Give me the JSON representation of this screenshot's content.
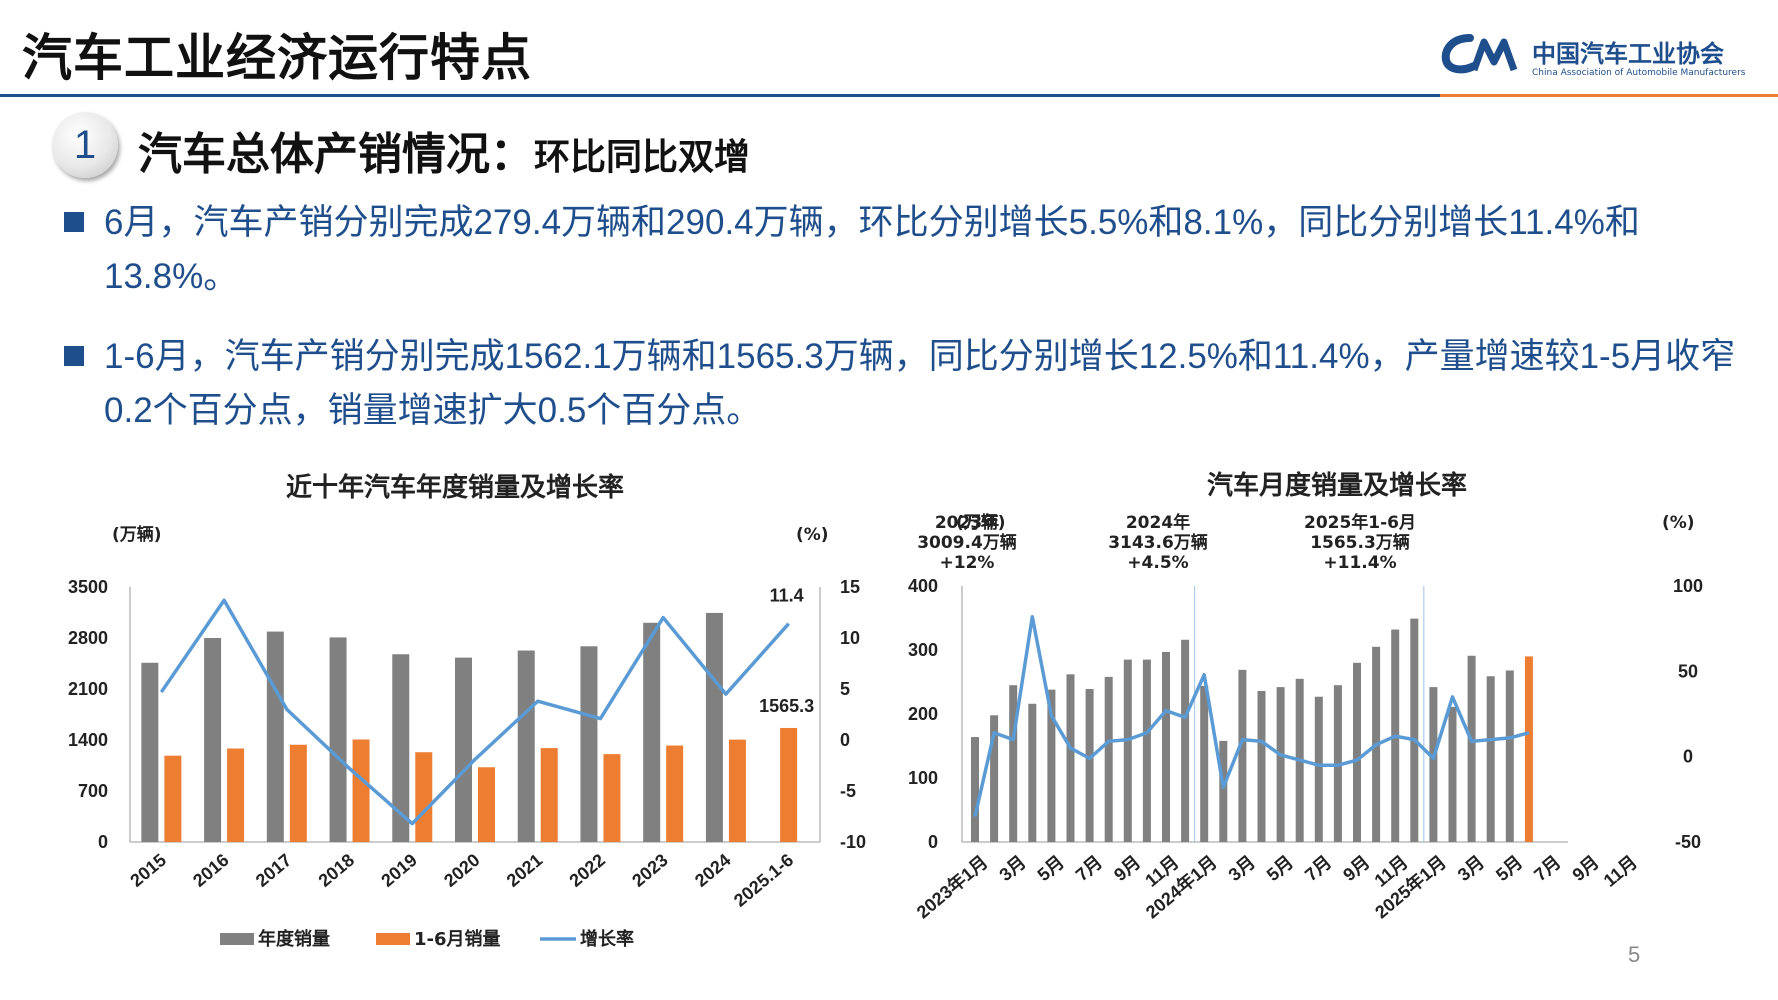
{
  "header": {
    "title": "汽车工业经济运行特点",
    "logo_cn": "中国汽车工业协会",
    "logo_en": "China Association of Automobile Manufacturers",
    "logo_mark": "CAM"
  },
  "section": {
    "number": "1",
    "title": "汽车总体产销情况：",
    "subtitle": "环比同比双增"
  },
  "bullets": [
    "6月，汽车产销分别完成279.4万辆和290.4万辆，环比分别增长5.5%和8.1%，同比分别增长11.4%和13.8%。",
    "1-6月，汽车产销分别完成1562.1万辆和1565.3万辆，同比分别增长12.5%和11.4%，产量增速较1-5月收窄0.2个百分点，销量增速扩大0.5个百分点。"
  ],
  "page_number": "5",
  "colors": {
    "grey_bar": "#808080",
    "orange_bar": "#ed7d31",
    "line": "#5b9bd5",
    "accent": "#1f4e8c"
  },
  "chart_data": [
    {
      "type": "bar",
      "title": "近十年汽车年度销量及增长率",
      "ylabel_left": "(万辆)",
      "ylabel_right": "(%)",
      "ylim_left": [
        0,
        3500
      ],
      "ylim_right": [
        -10,
        15
      ],
      "yticks_left": [
        "0",
        "700",
        "1400",
        "2100",
        "2800",
        "3500"
      ],
      "yticks_right": [
        "-10",
        "-5",
        "0",
        "5",
        "10",
        "15"
      ],
      "categories": [
        "2015",
        "2016",
        "2017",
        "2018",
        "2019",
        "2020",
        "2021",
        "2022",
        "2023",
        "2024",
        "2025.1-6"
      ],
      "series": [
        {
          "name": "年度销量",
          "type": "bar",
          "values": [
            2460,
            2800,
            2888,
            2808,
            2577,
            2531,
            2628,
            2686,
            3009,
            3144,
            null
          ]
        },
        {
          "name": "1-6月销量",
          "type": "bar",
          "values": [
            1185,
            1283,
            1335,
            1407,
            1232,
            1026,
            1289,
            1206,
            1324,
            1405,
            1565.3
          ]
        },
        {
          "name": "增长率",
          "type": "line",
          "axis": "right",
          "values": [
            4.7,
            13.7,
            3.0,
            -2.8,
            -8.2,
            -1.9,
            3.8,
            2.1,
            12.0,
            4.5,
            11.4
          ]
        }
      ],
      "data_labels": [
        "11.4",
        "1565.3"
      ],
      "legend": "bottom"
    },
    {
      "type": "bar",
      "title": "汽车月度销量及增长率",
      "ylabel_left": "(万辆)",
      "ylabel_right": "(%)",
      "ylim_left": [
        0,
        400
      ],
      "ylim_right": [
        -50,
        100
      ],
      "yticks_left": [
        "0",
        "100",
        "200",
        "300",
        "400"
      ],
      "yticks_right": [
        "-50",
        "0",
        "50",
        "100"
      ],
      "x_tick_labels": [
        "2023年1月",
        "3月",
        "5月",
        "7月",
        "9月",
        "11月",
        "2024年1月",
        "3月",
        "5月",
        "7月",
        "9月",
        "11月",
        "2025年1月",
        "3月",
        "5月",
        "7月",
        "9月",
        "11月"
      ],
      "series": [
        {
          "name": "月度销量",
          "type": "bar",
          "values": [
            164,
            198,
            245,
            216,
            238,
            262,
            239,
            258,
            285,
            285,
            297,
            316,
            244,
            158,
            269,
            236,
            242,
            255,
            227,
            245,
            280,
            305,
            332,
            349,
            242,
            211,
            291,
            259,
            268,
            290
          ]
        },
        {
          "name": "增长率",
          "type": "line",
          "axis": "right",
          "values": [
            -35,
            14,
            10,
            82,
            24,
            5,
            -1,
            9,
            10,
            14,
            27,
            23,
            48,
            -18,
            10,
            9,
            1,
            -2,
            -5,
            -5,
            -2,
            7,
            12,
            10,
            -1,
            35,
            9,
            10,
            11,
            14
          ]
        }
      ],
      "highlight_index": 29,
      "annotations": [
        {
          "lines": [
            "2023年",
            "3009.4万辆",
            "+12%"
          ]
        },
        {
          "lines": [
            "2024年",
            "3143.6万辆",
            "+4.5%"
          ]
        },
        {
          "lines": [
            "2025年1-6月",
            "1565.3万辆",
            "+11.4%"
          ]
        }
      ]
    }
  ],
  "legend": [
    "年度销量",
    "1-6月销量",
    "增长率"
  ]
}
